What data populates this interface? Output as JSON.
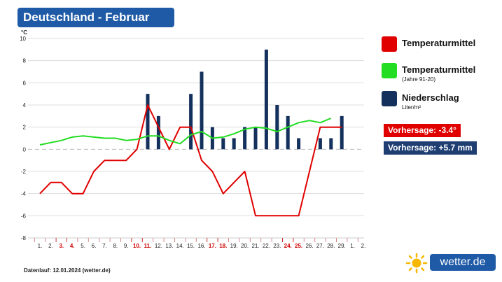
{
  "header": {
    "title": "Deutschland - Februar"
  },
  "legend": [
    {
      "label": "Temperaturmittel",
      "sub": "",
      "color": "#e00000"
    },
    {
      "label": "Temperaturmittel",
      "sub": "(Jahre 91-20)",
      "color": "#22dd22"
    },
    {
      "label": "Niederschlag",
      "sub": "Liter/m²",
      "color": "#14305c"
    }
  ],
  "forecast": {
    "temp_label": "Vorhersage: -3.4°",
    "precip_label": "Vorhersage: +5.7 mm",
    "temp_color": "#e00000",
    "precip_color": "#1f3f73"
  },
  "footer": {
    "text": "Datenlauf: 12.01.2024 (wetter.de)"
  },
  "brand": {
    "name": "wetter.de",
    "color": "#1f5aa6",
    "icon": "sun-icon"
  },
  "chart_data": {
    "type": "line",
    "yunit": "°C",
    "ylim": [
      -8,
      10
    ],
    "yticks": [
      -8,
      -6,
      -4,
      -2,
      0,
      2,
      4,
      6,
      8,
      10
    ],
    "x_labels": [
      "1.",
      "2.",
      "3.",
      "4.",
      "5.",
      "6.",
      "7.",
      "8.",
      "9.",
      "10.",
      "11.",
      "12.",
      "13.",
      "14.",
      "15.",
      "16.",
      "17.",
      "18.",
      "19.",
      "20.",
      "21.",
      "22.",
      "23.",
      "24.",
      "25.",
      "26.",
      "27.",
      "28.",
      "29.",
      "1.",
      "2."
    ],
    "weekend_days": [
      3,
      4,
      10,
      11,
      17,
      18,
      24,
      25
    ],
    "grid": true,
    "series": [
      {
        "kind": "line",
        "color": "#e00000",
        "values": [
          -4,
          -3,
          -3,
          -4,
          -4,
          -2,
          -1,
          -1,
          -1,
          0,
          4,
          2,
          0,
          2,
          2,
          -1,
          -2,
          -4,
          -3,
          -2,
          -6,
          -6,
          -6,
          -6,
          -6,
          -2,
          2,
          2,
          2,
          null,
          null
        ]
      },
      {
        "kind": "line",
        "color": "#22dd22",
        "values": [
          0.4,
          0.6,
          0.8,
          1.1,
          1.2,
          1.1,
          1.0,
          1.0,
          0.8,
          0.9,
          1.2,
          1.2,
          0.8,
          0.5,
          1.3,
          1.6,
          1.0,
          1.1,
          1.4,
          1.8,
          2.0,
          1.9,
          1.6,
          2.0,
          2.4,
          2.6,
          2.4,
          2.8,
          null,
          null,
          null
        ]
      },
      {
        "kind": "bar",
        "color": "#14305c",
        "values": [
          0,
          0,
          0,
          0,
          0,
          0,
          0,
          0,
          0,
          0,
          5,
          3,
          0,
          0,
          5,
          7,
          2,
          1,
          1,
          2,
          2,
          9,
          4,
          3,
          1,
          0,
          1,
          1,
          3,
          0,
          0
        ]
      }
    ]
  }
}
